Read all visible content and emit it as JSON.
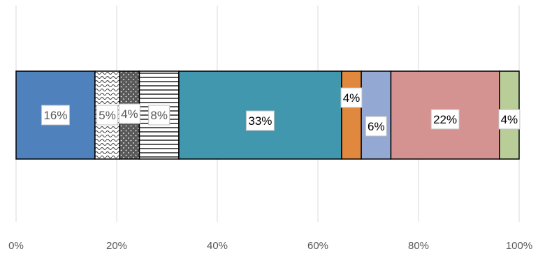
{
  "chart_data": {
    "type": "bar",
    "orientation": "horizontal",
    "stacked": true,
    "title": "",
    "xlabel": "",
    "ylabel": "",
    "xlim": [
      0,
      100
    ],
    "grid": true,
    "legend": "none",
    "ticks": [
      "0%",
      "20%",
      "40%",
      "60%",
      "80%",
      "100%"
    ],
    "series": [
      {
        "value": 16,
        "label": "16%",
        "color": "#4f81bd",
        "pattern": "solid",
        "label_color": "#595959"
      },
      {
        "value": 5,
        "label": "5%",
        "color": "#ffffff",
        "pattern": "wave",
        "label_color": "#595959"
      },
      {
        "value": 4,
        "label": "4%",
        "color": "#595959",
        "pattern": "dots",
        "label_color": "#595959"
      },
      {
        "value": 8,
        "label": "8%",
        "color": "#ffffff",
        "pattern": "hlines",
        "label_color": "#595959"
      },
      {
        "value": 33,
        "label": "33%",
        "color": "#4198ae",
        "pattern": "solid",
        "label_color": "#000000"
      },
      {
        "value": 4,
        "label": "4%",
        "color": "#e0883e",
        "pattern": "solid",
        "label_color": "#000000"
      },
      {
        "value": 6,
        "label": "6%",
        "color": "#94a8d4",
        "pattern": "solid",
        "label_color": "#000000"
      },
      {
        "value": 22,
        "label": "22%",
        "color": "#d49390",
        "pattern": "solid",
        "label_color": "#000000"
      },
      {
        "value": 4,
        "label": "4%",
        "color": "#b9cd98",
        "pattern": "solid",
        "label_color": "#000000"
      }
    ]
  }
}
